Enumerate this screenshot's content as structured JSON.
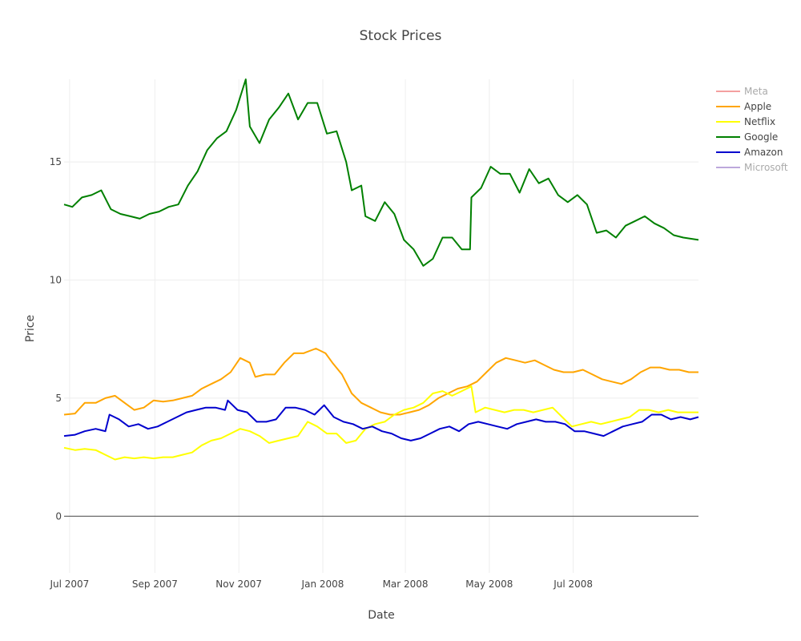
{
  "chart_data": {
    "type": "line",
    "title": "Stock Prices",
    "xlabel": "Date",
    "ylabel": "Price",
    "xlim": [
      "2007-06-27",
      "2008-09-30"
    ],
    "ylim": [
      -2.4,
      18.5
    ],
    "grid": true,
    "legend_position": "right",
    "x_ticks": [
      {
        "date": "2007-07-01",
        "label": "Jul 2007"
      },
      {
        "date": "2007-09-01",
        "label": "Sep 2007"
      },
      {
        "date": "2007-11-01",
        "label": "Nov 2007"
      },
      {
        "date": "2008-01-01",
        "label": "Jan 2008"
      },
      {
        "date": "2008-03-01",
        "label": "Mar 2008"
      },
      {
        "date": "2008-05-01",
        "label": "May 2008"
      },
      {
        "date": "2008-07-01",
        "label": "Jul 2008"
      }
    ],
    "y_ticks": [
      {
        "value": 0,
        "label": "0"
      },
      {
        "value": 5,
        "label": "5"
      },
      {
        "value": 10,
        "label": "10"
      },
      {
        "value": 15,
        "label": "15"
      }
    ],
    "series": [
      {
        "name": "Meta",
        "color": "#f08080",
        "legend_muted": true,
        "points": []
      },
      {
        "name": "Apple",
        "color": "#ffa500",
        "points": [
          [
            "2007-06-27",
            4.3
          ],
          [
            "2007-07-05",
            4.35
          ],
          [
            "2007-07-12",
            4.8
          ],
          [
            "2007-07-20",
            4.8
          ],
          [
            "2007-07-27",
            5.0
          ],
          [
            "2007-08-03",
            5.1
          ],
          [
            "2007-08-10",
            4.8
          ],
          [
            "2007-08-17",
            4.5
          ],
          [
            "2007-08-24",
            4.6
          ],
          [
            "2007-08-31",
            4.9
          ],
          [
            "2007-09-07",
            4.85
          ],
          [
            "2007-09-14",
            4.9
          ],
          [
            "2007-09-21",
            5.0
          ],
          [
            "2007-09-28",
            5.1
          ],
          [
            "2007-10-05",
            5.4
          ],
          [
            "2007-10-12",
            5.6
          ],
          [
            "2007-10-19",
            5.8
          ],
          [
            "2007-10-26",
            6.1
          ],
          [
            "2007-11-02",
            6.7
          ],
          [
            "2007-11-09",
            6.5
          ],
          [
            "2007-11-13",
            5.9
          ],
          [
            "2007-11-20",
            6.0
          ],
          [
            "2007-11-27",
            6.0
          ],
          [
            "2007-12-04",
            6.5
          ],
          [
            "2007-12-11",
            6.9
          ],
          [
            "2007-12-18",
            6.9
          ],
          [
            "2007-12-27",
            7.1
          ],
          [
            "2008-01-03",
            6.9
          ],
          [
            "2008-01-08",
            6.5
          ],
          [
            "2008-01-15",
            6.0
          ],
          [
            "2008-01-22",
            5.2
          ],
          [
            "2008-01-29",
            4.8
          ],
          [
            "2008-02-05",
            4.6
          ],
          [
            "2008-02-12",
            4.4
          ],
          [
            "2008-02-19",
            4.3
          ],
          [
            "2008-02-26",
            4.3
          ],
          [
            "2008-03-04",
            4.4
          ],
          [
            "2008-03-11",
            4.5
          ],
          [
            "2008-03-18",
            4.7
          ],
          [
            "2008-03-25",
            5.0
          ],
          [
            "2008-04-01",
            5.2
          ],
          [
            "2008-04-08",
            5.4
          ],
          [
            "2008-04-15",
            5.5
          ],
          [
            "2008-04-22",
            5.7
          ],
          [
            "2008-04-29",
            6.1
          ],
          [
            "2008-05-06",
            6.5
          ],
          [
            "2008-05-13",
            6.7
          ],
          [
            "2008-05-20",
            6.6
          ],
          [
            "2008-05-27",
            6.5
          ],
          [
            "2008-06-03",
            6.6
          ],
          [
            "2008-06-10",
            6.4
          ],
          [
            "2008-06-17",
            6.2
          ],
          [
            "2008-06-24",
            6.1
          ],
          [
            "2008-07-01",
            6.1
          ],
          [
            "2008-07-08",
            6.2
          ],
          [
            "2008-07-15",
            6.0
          ],
          [
            "2008-07-22",
            5.8
          ],
          [
            "2008-07-29",
            5.7
          ],
          [
            "2008-08-05",
            5.6
          ],
          [
            "2008-08-12",
            5.8
          ],
          [
            "2008-08-19",
            6.1
          ],
          [
            "2008-08-26",
            6.3
          ],
          [
            "2008-09-02",
            6.3
          ],
          [
            "2008-09-09",
            6.2
          ],
          [
            "2008-09-16",
            6.2
          ],
          [
            "2008-09-23",
            6.1
          ],
          [
            "2008-09-30",
            6.1
          ]
        ]
      },
      {
        "name": "Netflix",
        "color": "#ffff00",
        "points": [
          [
            "2007-06-27",
            2.9
          ],
          [
            "2007-07-05",
            2.8
          ],
          [
            "2007-07-12",
            2.85
          ],
          [
            "2007-07-20",
            2.8
          ],
          [
            "2007-07-27",
            2.6
          ],
          [
            "2007-08-03",
            2.4
          ],
          [
            "2007-08-10",
            2.5
          ],
          [
            "2007-08-17",
            2.45
          ],
          [
            "2007-08-24",
            2.5
          ],
          [
            "2007-08-31",
            2.45
          ],
          [
            "2007-09-07",
            2.5
          ],
          [
            "2007-09-14",
            2.5
          ],
          [
            "2007-09-21",
            2.6
          ],
          [
            "2007-09-28",
            2.7
          ],
          [
            "2007-10-05",
            3.0
          ],
          [
            "2007-10-12",
            3.2
          ],
          [
            "2007-10-19",
            3.3
          ],
          [
            "2007-10-26",
            3.5
          ],
          [
            "2007-11-02",
            3.7
          ],
          [
            "2007-11-09",
            3.6
          ],
          [
            "2007-11-16",
            3.4
          ],
          [
            "2007-11-23",
            3.1
          ],
          [
            "2007-11-30",
            3.2
          ],
          [
            "2007-12-07",
            3.3
          ],
          [
            "2007-12-14",
            3.4
          ],
          [
            "2007-12-21",
            4.0
          ],
          [
            "2007-12-28",
            3.8
          ],
          [
            "2008-01-04",
            3.5
          ],
          [
            "2008-01-11",
            3.5
          ],
          [
            "2008-01-18",
            3.1
          ],
          [
            "2008-01-25",
            3.2
          ],
          [
            "2008-02-01",
            3.7
          ],
          [
            "2008-02-08",
            3.9
          ],
          [
            "2008-02-15",
            4.0
          ],
          [
            "2008-02-22",
            4.3
          ],
          [
            "2008-02-29",
            4.5
          ],
          [
            "2008-03-07",
            4.6
          ],
          [
            "2008-03-14",
            4.8
          ],
          [
            "2008-03-21",
            5.2
          ],
          [
            "2008-03-28",
            5.3
          ],
          [
            "2008-04-04",
            5.1
          ],
          [
            "2008-04-11",
            5.3
          ],
          [
            "2008-04-18",
            5.5
          ],
          [
            "2008-04-21",
            4.4
          ],
          [
            "2008-04-28",
            4.6
          ],
          [
            "2008-05-05",
            4.5
          ],
          [
            "2008-05-12",
            4.4
          ],
          [
            "2008-05-19",
            4.5
          ],
          [
            "2008-05-26",
            4.5
          ],
          [
            "2008-06-02",
            4.4
          ],
          [
            "2008-06-09",
            4.5
          ],
          [
            "2008-06-16",
            4.6
          ],
          [
            "2008-06-23",
            4.2
          ],
          [
            "2008-06-30",
            3.8
          ],
          [
            "2008-07-07",
            3.9
          ],
          [
            "2008-07-14",
            4.0
          ],
          [
            "2008-07-21",
            3.9
          ],
          [
            "2008-07-28",
            4.0
          ],
          [
            "2008-08-04",
            4.1
          ],
          [
            "2008-08-11",
            4.2
          ],
          [
            "2008-08-18",
            4.5
          ],
          [
            "2008-08-25",
            4.5
          ],
          [
            "2008-09-01",
            4.4
          ],
          [
            "2008-09-08",
            4.5
          ],
          [
            "2008-09-15",
            4.4
          ],
          [
            "2008-09-22",
            4.4
          ],
          [
            "2008-09-30",
            4.4
          ]
        ]
      },
      {
        "name": "Google",
        "color": "#008000",
        "points": [
          [
            "2007-06-27",
            13.2
          ],
          [
            "2007-07-03",
            13.1
          ],
          [
            "2007-07-10",
            13.5
          ],
          [
            "2007-07-17",
            13.6
          ],
          [
            "2007-07-24",
            13.8
          ],
          [
            "2007-07-31",
            13.0
          ],
          [
            "2007-08-07",
            12.8
          ],
          [
            "2007-08-14",
            12.7
          ],
          [
            "2007-08-21",
            12.6
          ],
          [
            "2007-08-28",
            12.8
          ],
          [
            "2007-09-04",
            12.9
          ],
          [
            "2007-09-11",
            13.1
          ],
          [
            "2007-09-18",
            13.2
          ],
          [
            "2007-09-25",
            14.0
          ],
          [
            "2007-10-02",
            14.6
          ],
          [
            "2007-10-09",
            15.5
          ],
          [
            "2007-10-16",
            16.0
          ],
          [
            "2007-10-23",
            16.3
          ],
          [
            "2007-10-30",
            17.2
          ],
          [
            "2007-11-06",
            18.5
          ],
          [
            "2007-11-09",
            16.5
          ],
          [
            "2007-11-16",
            15.8
          ],
          [
            "2007-11-23",
            16.8
          ],
          [
            "2007-11-30",
            17.3
          ],
          [
            "2007-12-07",
            17.9
          ],
          [
            "2007-12-14",
            16.8
          ],
          [
            "2007-12-21",
            17.5
          ],
          [
            "2007-12-28",
            17.5
          ],
          [
            "2008-01-04",
            16.2
          ],
          [
            "2008-01-11",
            16.3
          ],
          [
            "2008-01-18",
            15.0
          ],
          [
            "2008-01-22",
            13.8
          ],
          [
            "2008-01-29",
            14.0
          ],
          [
            "2008-02-01",
            12.7
          ],
          [
            "2008-02-08",
            12.5
          ],
          [
            "2008-02-15",
            13.3
          ],
          [
            "2008-02-22",
            12.8
          ],
          [
            "2008-02-29",
            11.7
          ],
          [
            "2008-03-07",
            11.3
          ],
          [
            "2008-03-14",
            10.6
          ],
          [
            "2008-03-21",
            10.9
          ],
          [
            "2008-03-28",
            11.8
          ],
          [
            "2008-04-04",
            11.8
          ],
          [
            "2008-04-11",
            11.3
          ],
          [
            "2008-04-17",
            11.3
          ],
          [
            "2008-04-18",
            13.5
          ],
          [
            "2008-04-25",
            13.9
          ],
          [
            "2008-05-02",
            14.8
          ],
          [
            "2008-05-09",
            14.5
          ],
          [
            "2008-05-16",
            14.5
          ],
          [
            "2008-05-23",
            13.7
          ],
          [
            "2008-05-30",
            14.7
          ],
          [
            "2008-06-06",
            14.1
          ],
          [
            "2008-06-13",
            14.3
          ],
          [
            "2008-06-20",
            13.6
          ],
          [
            "2008-06-27",
            13.3
          ],
          [
            "2008-07-04",
            13.6
          ],
          [
            "2008-07-11",
            13.2
          ],
          [
            "2008-07-18",
            12.0
          ],
          [
            "2008-07-25",
            12.1
          ],
          [
            "2008-08-01",
            11.8
          ],
          [
            "2008-08-08",
            12.3
          ],
          [
            "2008-08-15",
            12.5
          ],
          [
            "2008-08-22",
            12.7
          ],
          [
            "2008-08-29",
            12.4
          ],
          [
            "2008-09-05",
            12.2
          ],
          [
            "2008-09-12",
            11.9
          ],
          [
            "2008-09-19",
            11.8
          ],
          [
            "2008-09-30",
            11.7
          ]
        ]
      },
      {
        "name": "Amazon",
        "color": "#0000cd",
        "points": [
          [
            "2007-06-27",
            3.4
          ],
          [
            "2007-07-05",
            3.45
          ],
          [
            "2007-07-12",
            3.6
          ],
          [
            "2007-07-20",
            3.7
          ],
          [
            "2007-07-27",
            3.6
          ],
          [
            "2007-07-30",
            4.3
          ],
          [
            "2007-08-06",
            4.1
          ],
          [
            "2007-08-13",
            3.8
          ],
          [
            "2007-08-20",
            3.9
          ],
          [
            "2007-08-27",
            3.7
          ],
          [
            "2007-09-03",
            3.8
          ],
          [
            "2007-09-10",
            4.0
          ],
          [
            "2007-09-17",
            4.2
          ],
          [
            "2007-09-24",
            4.4
          ],
          [
            "2007-10-01",
            4.5
          ],
          [
            "2007-10-08",
            4.6
          ],
          [
            "2007-10-15",
            4.6
          ],
          [
            "2007-10-22",
            4.5
          ],
          [
            "2007-10-24",
            4.9
          ],
          [
            "2007-10-31",
            4.5
          ],
          [
            "2007-11-07",
            4.4
          ],
          [
            "2007-11-14",
            4.0
          ],
          [
            "2007-11-21",
            4.0
          ],
          [
            "2007-11-28",
            4.1
          ],
          [
            "2007-12-05",
            4.6
          ],
          [
            "2007-12-12",
            4.6
          ],
          [
            "2007-12-19",
            4.5
          ],
          [
            "2007-12-26",
            4.3
          ],
          [
            "2008-01-02",
            4.7
          ],
          [
            "2008-01-09",
            4.2
          ],
          [
            "2008-01-16",
            4.0
          ],
          [
            "2008-01-23",
            3.9
          ],
          [
            "2008-01-30",
            3.7
          ],
          [
            "2008-02-06",
            3.8
          ],
          [
            "2008-02-13",
            3.6
          ],
          [
            "2008-02-20",
            3.5
          ],
          [
            "2008-02-27",
            3.3
          ],
          [
            "2008-03-05",
            3.2
          ],
          [
            "2008-03-12",
            3.3
          ],
          [
            "2008-03-19",
            3.5
          ],
          [
            "2008-03-26",
            3.7
          ],
          [
            "2008-04-02",
            3.8
          ],
          [
            "2008-04-09",
            3.6
          ],
          [
            "2008-04-16",
            3.9
          ],
          [
            "2008-04-23",
            4.0
          ],
          [
            "2008-04-30",
            3.9
          ],
          [
            "2008-05-07",
            3.8
          ],
          [
            "2008-05-14",
            3.7
          ],
          [
            "2008-05-21",
            3.9
          ],
          [
            "2008-05-28",
            4.0
          ],
          [
            "2008-06-04",
            4.1
          ],
          [
            "2008-06-11",
            4.0
          ],
          [
            "2008-06-18",
            4.0
          ],
          [
            "2008-06-25",
            3.9
          ],
          [
            "2008-07-02",
            3.6
          ],
          [
            "2008-07-09",
            3.6
          ],
          [
            "2008-07-16",
            3.5
          ],
          [
            "2008-07-23",
            3.4
          ],
          [
            "2008-07-30",
            3.6
          ],
          [
            "2008-08-06",
            3.8
          ],
          [
            "2008-08-13",
            3.9
          ],
          [
            "2008-08-20",
            4.0
          ],
          [
            "2008-08-27",
            4.3
          ],
          [
            "2008-09-03",
            4.3
          ],
          [
            "2008-09-10",
            4.1
          ],
          [
            "2008-09-17",
            4.2
          ],
          [
            "2008-09-24",
            4.1
          ],
          [
            "2008-09-30",
            4.2
          ]
        ]
      },
      {
        "name": "Microsoft",
        "color": "#a78bd0",
        "legend_muted": true,
        "points": []
      }
    ]
  }
}
